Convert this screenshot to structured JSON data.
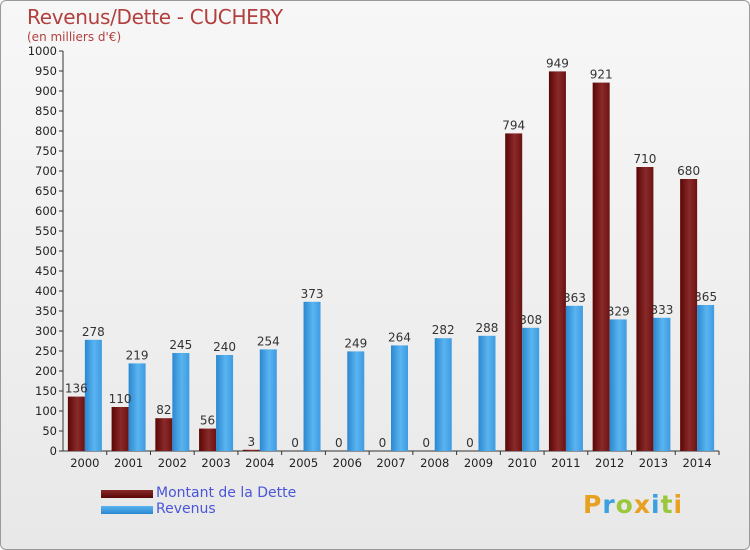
{
  "header": {
    "title": "Revenus/Dette - CUCHERY",
    "subtitle": "(en milliers d'€)"
  },
  "chart_data": {
    "type": "bar",
    "categories": [
      "2000",
      "2001",
      "2002",
      "2003",
      "2004",
      "2005",
      "2006",
      "2007",
      "2008",
      "2009",
      "2010",
      "2011",
      "2012",
      "2013",
      "2014"
    ],
    "series": [
      {
        "name": "Montant de la Dette",
        "color": "#6b1010",
        "values": [
          136,
          110,
          82,
          56,
          3,
          0,
          0,
          0,
          0,
          0,
          794,
          949,
          921,
          710,
          680
        ]
      },
      {
        "name": "Revenus",
        "color": "#3d9be0",
        "values": [
          278,
          219,
          245,
          240,
          254,
          373,
          249,
          264,
          282,
          288,
          308,
          363,
          329,
          333,
          365
        ]
      }
    ],
    "ylim": [
      0,
      1000
    ],
    "yticks": [
      0,
      50,
      100,
      150,
      200,
      250,
      300,
      350,
      400,
      450,
      500,
      550,
      600,
      650,
      700,
      750,
      800,
      850,
      900,
      950,
      1000
    ],
    "grid": false,
    "legend": "bottom-left"
  },
  "legend": {
    "items": [
      {
        "label": "Montant de la Dette"
      },
      {
        "label": "Revenus"
      }
    ]
  },
  "logo": {
    "letters": [
      {
        "ch": "P",
        "color": "#e8a020"
      },
      {
        "ch": "r",
        "color": "#3aa0e0"
      },
      {
        "ch": "o",
        "color": "#9bc73c"
      },
      {
        "ch": "x",
        "color": "#e8a020"
      },
      {
        "ch": "i",
        "color": "#3aa0e0"
      },
      {
        "ch": "t",
        "color": "#9bc73c"
      },
      {
        "ch": "i",
        "color": "#e8a020"
      }
    ]
  }
}
